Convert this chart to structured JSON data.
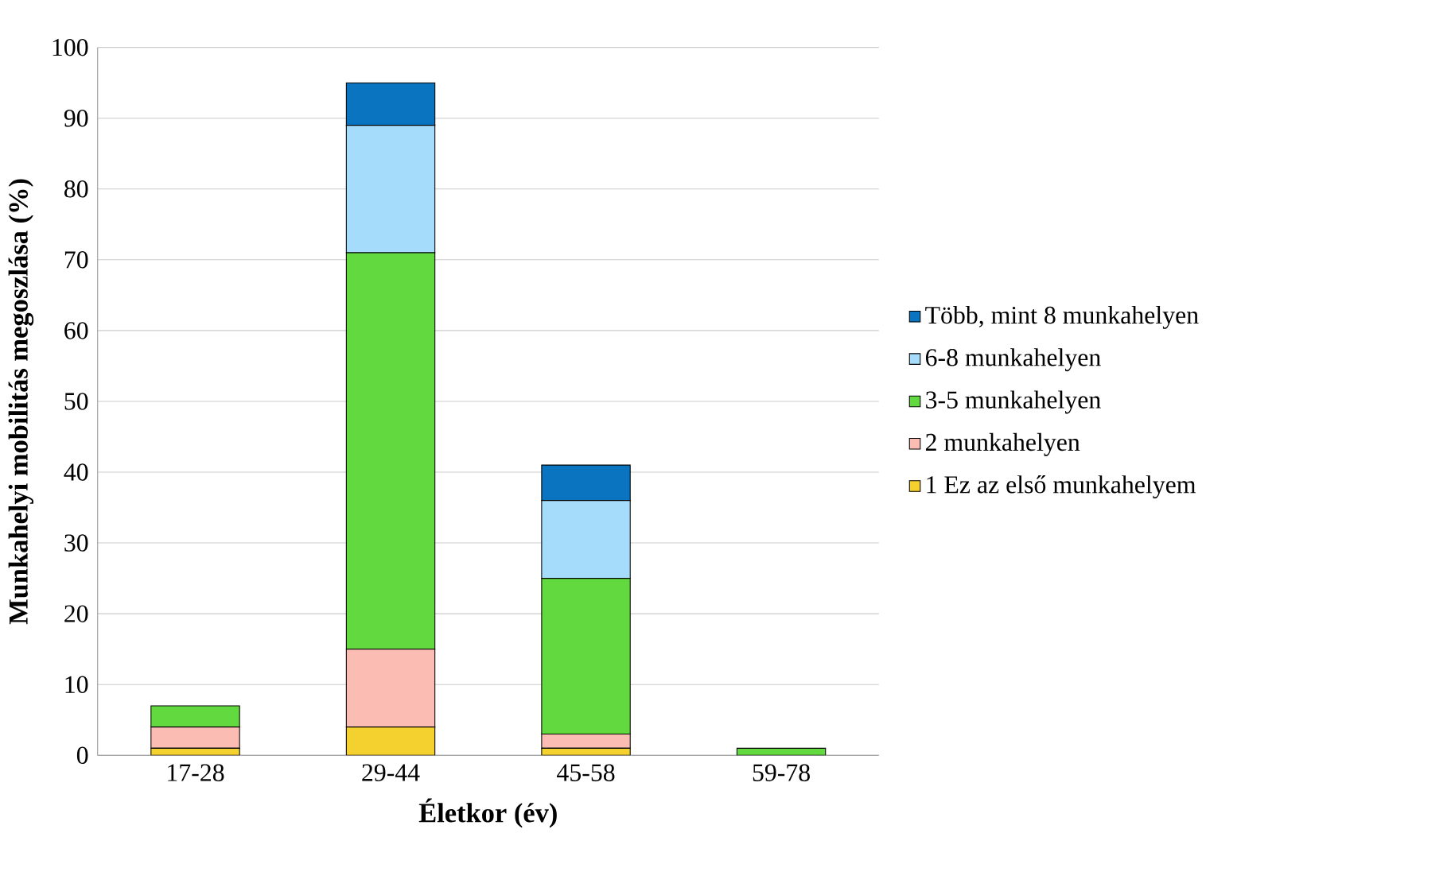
{
  "chart_data": {
    "type": "bar",
    "stacked": true,
    "xlabel": "Életkor (év)",
    "ylabel": "Munkahelyi mobilitás megoszlása (%)",
    "categories": [
      "17-28",
      "29-44",
      "45-58",
      "59-78"
    ],
    "series": [
      {
        "name": "1 Ez az első munkahelyem",
        "color": "#f5d130",
        "values": [
          1,
          4,
          1,
          0
        ]
      },
      {
        "name": "2 munkahelyen",
        "color": "#fbbcb3",
        "values": [
          3,
          11,
          2,
          0
        ]
      },
      {
        "name": "3-5 munkahelyen",
        "color": "#62d93e",
        "values": [
          3,
          56,
          22,
          1
        ]
      },
      {
        "name": "6-8 munkahelyen",
        "color": "#a6dcfb",
        "values": [
          0,
          18,
          11,
          0
        ]
      },
      {
        "name": "Több, mint 8 munkahelyen",
        "color": "#0a74c0",
        "values": [
          0,
          6,
          5,
          0
        ]
      }
    ],
    "ylim": [
      0,
      100
    ],
    "yticks": [
      0,
      10,
      20,
      30,
      40,
      50,
      60,
      70,
      80,
      90,
      100
    ],
    "grid": "y",
    "legend": "right"
  }
}
